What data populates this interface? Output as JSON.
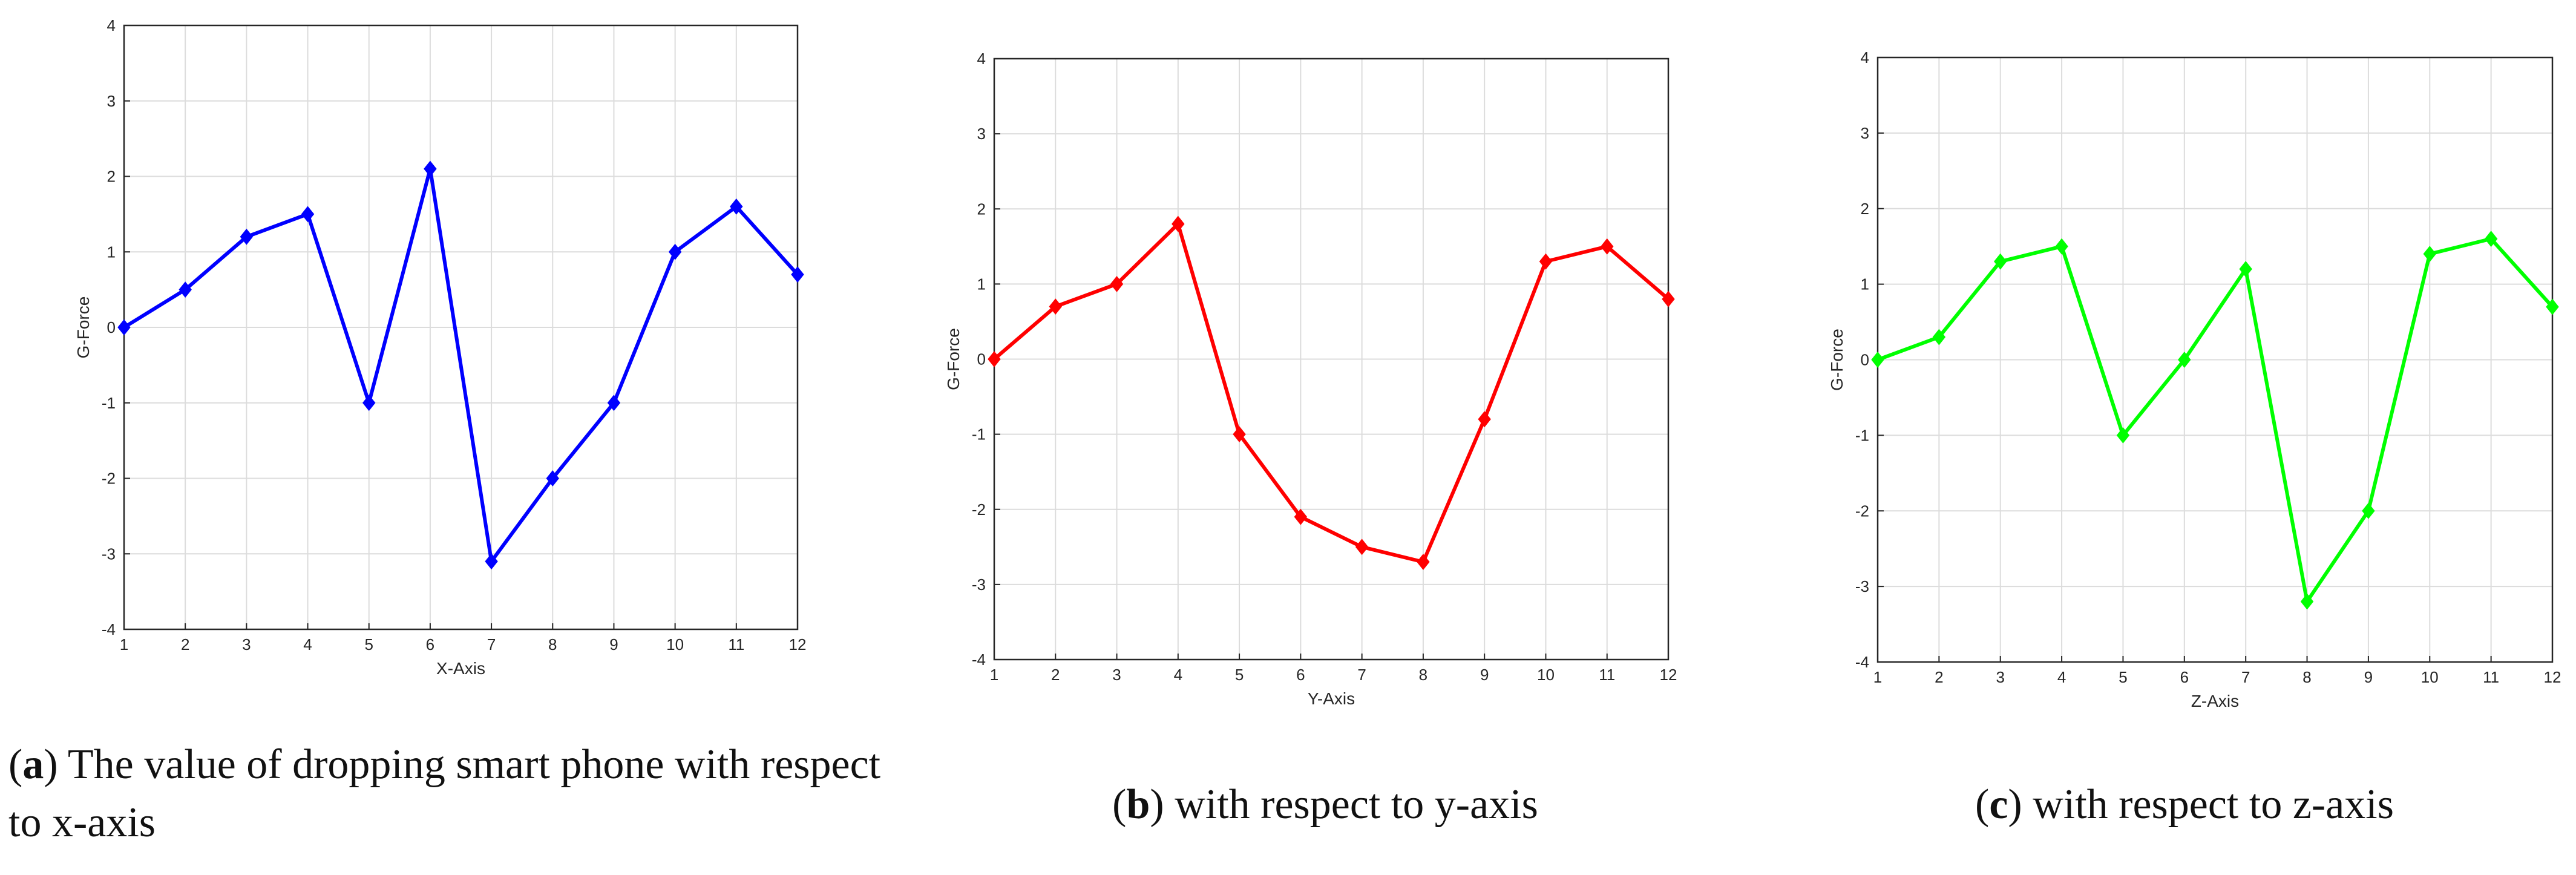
{
  "captions": [
    {
      "letter": "a",
      "text": "The value of dropping smart phone with respect to x-axis"
    },
    {
      "letter": "b",
      "text": "with respect to y-axis"
    },
    {
      "letter": "c",
      "text": "with respect to z-axis"
    }
  ],
  "chart_data": [
    {
      "type": "line",
      "xlabel": "X-Axis",
      "ylabel": "G-Force",
      "xlim": [
        1,
        12
      ],
      "ylim": [
        -4,
        4
      ],
      "xticks": [
        1,
        2,
        3,
        4,
        5,
        6,
        7,
        8,
        9,
        10,
        11,
        12
      ],
      "yticks": [
        -4,
        -3,
        -2,
        -1,
        0,
        1,
        2,
        3,
        4
      ],
      "grid": true,
      "marker": "diamond",
      "color": "#0000ff",
      "x": [
        1,
        2,
        3,
        4,
        5,
        6,
        7,
        8,
        9,
        10,
        11,
        12
      ],
      "y": [
        0,
        0.5,
        1.2,
        1.5,
        -1,
        2.1,
        -3.1,
        -2,
        -1,
        1,
        1.6,
        0.7
      ]
    },
    {
      "type": "line",
      "xlabel": "Y-Axis",
      "ylabel": "G-Force",
      "xlim": [
        1,
        12
      ],
      "ylim": [
        -4,
        4
      ],
      "xticks": [
        1,
        2,
        3,
        4,
        5,
        6,
        7,
        8,
        9,
        10,
        11,
        12
      ],
      "yticks": [
        -4,
        -3,
        -2,
        -1,
        0,
        1,
        2,
        3,
        4
      ],
      "grid": true,
      "marker": "diamond",
      "color": "#ff0000",
      "x": [
        1,
        2,
        3,
        4,
        5,
        6,
        7,
        8,
        9,
        10,
        11,
        12
      ],
      "y": [
        0,
        0.7,
        1,
        1.8,
        -1,
        -2.1,
        -2.5,
        -2.7,
        -0.8,
        1.3,
        1.5,
        0.8
      ]
    },
    {
      "type": "line",
      "xlabel": "Z-Axis",
      "ylabel": "G-Force",
      "xlim": [
        1,
        12
      ],
      "ylim": [
        -4,
        4
      ],
      "xticks": [
        1,
        2,
        3,
        4,
        5,
        6,
        7,
        8,
        9,
        10,
        11,
        12
      ],
      "yticks": [
        -4,
        -3,
        -2,
        -1,
        0,
        1,
        2,
        3,
        4
      ],
      "grid": true,
      "marker": "diamond",
      "color": "#00ff00",
      "x": [
        1,
        2,
        3,
        4,
        5,
        6,
        7,
        8,
        9,
        10,
        11,
        12
      ],
      "y": [
        0,
        0.3,
        1.3,
        1.5,
        -1,
        0,
        1.2,
        -3.2,
        -2,
        1.4,
        1.6,
        0.7
      ]
    }
  ]
}
